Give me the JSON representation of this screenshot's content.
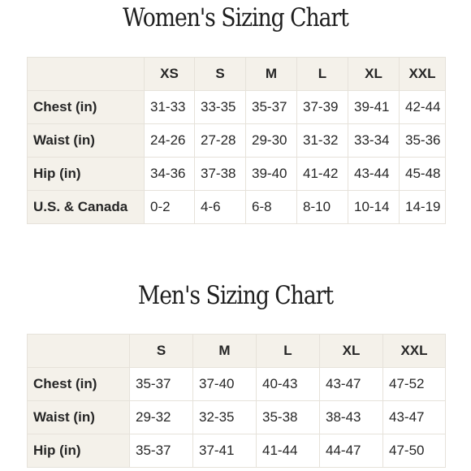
{
  "women": {
    "title": "Women's Sizing Chart",
    "sizes": [
      "XS",
      "S",
      "M",
      "L",
      "XL",
      "XXL"
    ],
    "rows": [
      {
        "label": "Chest (in)",
        "values": [
          "31-33",
          "33-35",
          "35-37",
          "37-39",
          "39-41",
          "42-44"
        ]
      },
      {
        "label": "Waist (in)",
        "values": [
          "24-26",
          "27-28",
          "29-30",
          "31-32",
          "33-34",
          "35-36"
        ]
      },
      {
        "label": "Hip (in)",
        "values": [
          "34-36",
          "37-38",
          "39-40",
          "41-42",
          "43-44",
          "45-48"
        ]
      },
      {
        "label": "U.S. & Canada",
        "values": [
          "0-2",
          "4-6",
          "6-8",
          "8-10",
          "10-14",
          "14-19"
        ]
      }
    ]
  },
  "men": {
    "title": "Men's Sizing Chart",
    "sizes": [
      "S",
      "M",
      "L",
      "XL",
      "XXL"
    ],
    "rows": [
      {
        "label": "Chest (in)",
        "values": [
          "35-37",
          "37-40",
          "40-43",
          "43-47",
          "47-52"
        ]
      },
      {
        "label": "Waist (in)",
        "values": [
          "29-32",
          "32-35",
          "35-38",
          "38-43",
          "43-47"
        ]
      },
      {
        "label": "Hip (in)",
        "values": [
          "35-37",
          "37-41",
          "41-44",
          "44-47",
          "47-50"
        ]
      }
    ]
  }
}
